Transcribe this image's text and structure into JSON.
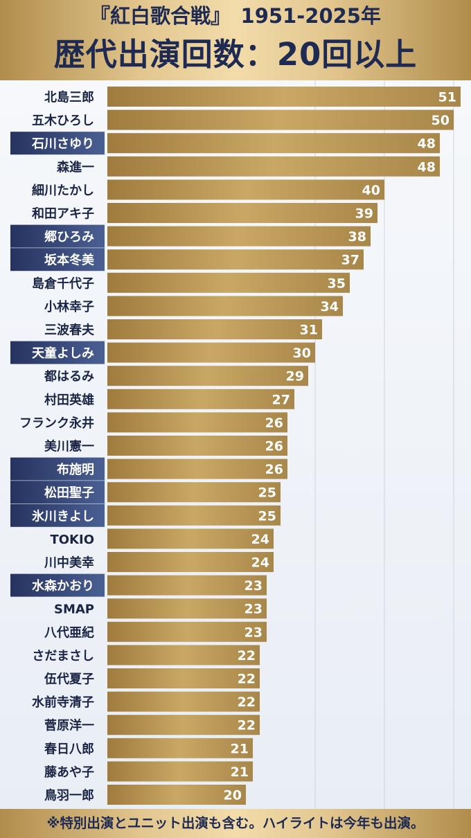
{
  "header": {
    "line1": "『紅白歌合戦』　1951-2025年",
    "line2": "歴代出演回数：20回以上"
  },
  "footer": {
    "note": "※特別出演とユニット出演も含む。ハイライトは今年も出演。"
  },
  "colors": {
    "bar_dark": "#9f7c3e",
    "bar_light": "#c9a764",
    "highlight_dark": "#26335f",
    "highlight_light": "#4a5f92",
    "text_dark": "#1a2444"
  },
  "chart_data": {
    "type": "bar",
    "orientation": "horizontal",
    "categories": [
      "北島三郎",
      "五木ひろし",
      "石川さゆり",
      "森進一",
      "細川たかし",
      "和田アキ子",
      "郷ひろみ",
      "坂本冬美",
      "島倉千代子",
      "小林幸子",
      "三波春夫",
      "天童よしみ",
      "都はるみ",
      "村田英雄",
      "フランク永井",
      "美川憲一",
      "布施明",
      "松田聖子",
      "氷川きよし",
      "TOKIO",
      "川中美幸",
      "水森かおり",
      "SMAP",
      "八代亜紀",
      "さだまさし",
      "伍代夏子",
      "水前寺清子",
      "菅原洋一",
      "春日八郎",
      "藤あや子",
      "鳥羽一郎"
    ],
    "values": [
      51,
      50,
      48,
      48,
      40,
      39,
      38,
      37,
      35,
      34,
      31,
      30,
      29,
      27,
      26,
      26,
      26,
      25,
      25,
      24,
      24,
      23,
      23,
      23,
      22,
      22,
      22,
      22,
      21,
      21,
      20
    ],
    "highlighted": [
      false,
      false,
      true,
      false,
      false,
      false,
      true,
      true,
      false,
      false,
      false,
      true,
      false,
      false,
      false,
      false,
      true,
      true,
      true,
      false,
      false,
      true,
      false,
      false,
      false,
      false,
      false,
      false,
      false,
      false,
      false
    ],
    "xlim": [
      0,
      52
    ],
    "gridlines": [
      30,
      40,
      50
    ],
    "grid": true,
    "legend": "none"
  }
}
